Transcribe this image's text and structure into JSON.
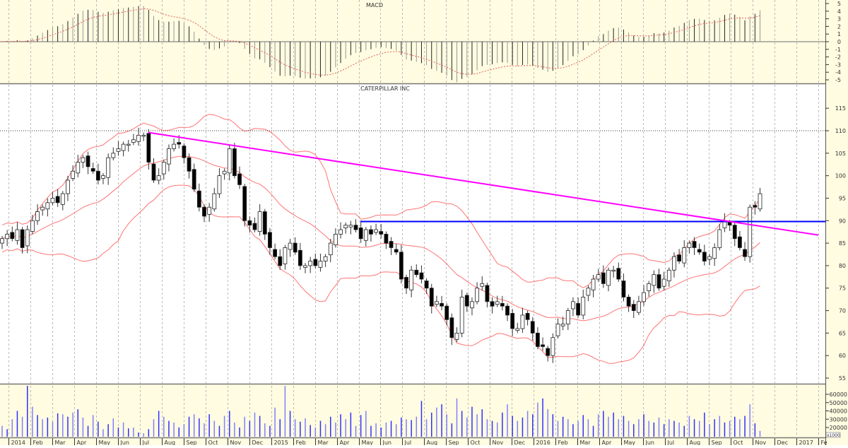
{
  "macd_panel": {
    "title": "MACD",
    "ticks": [
      5,
      4,
      3,
      2,
      1,
      0,
      -1,
      -2,
      -3,
      -4,
      -5
    ]
  },
  "price_panel": {
    "title": "CATERPILLAR INC",
    "ticks": [
      55,
      60,
      65,
      70,
      75,
      80,
      85,
      90,
      95,
      100,
      105,
      110,
      115
    ]
  },
  "volume_panel": {
    "ticks": [
      "20000",
      "30000",
      "40000",
      "50000",
      "60000"
    ],
    "unit_label": "x1000"
  },
  "x_axis": {
    "months": [
      "2014",
      "Feb",
      "Mar",
      "Apr",
      "May",
      "Jun",
      "Jul",
      "Aug",
      "Sep",
      "Oct",
      "Nov",
      "Dec",
      "2015",
      "Feb",
      "Mar",
      "Apr",
      "May",
      "Jun",
      "Jul",
      "Aug",
      "Sep",
      "Oct",
      "Nov",
      "Dec",
      "2016",
      "Feb",
      "Mar",
      "Apr",
      "May",
      "Jun",
      "Jul",
      "Aug",
      "Sep",
      "Oct",
      "Nov",
      "Dec",
      "2017",
      "Fe"
    ]
  },
  "colors": {
    "panel_bg": "#fffce1",
    "bollinger": "#ff5a5a",
    "trendline": "#ff00ff",
    "resistance": "#0000ff",
    "volume": "#3030ff",
    "macd_signal": "#e06060"
  },
  "chart_data": {
    "type": "candlestick",
    "interval": "weekly",
    "closes": [
      86,
      87,
      86,
      88,
      84,
      88,
      90,
      92,
      93,
      94,
      95,
      94,
      96,
      99,
      101,
      103,
      104,
      102,
      101,
      99,
      100,
      104,
      105,
      106,
      107,
      107,
      108,
      109,
      109,
      103,
      99,
      100,
      103,
      106,
      107,
      107,
      104,
      101,
      97,
      93,
      91,
      93,
      96,
      100,
      101,
      106,
      100,
      98,
      90,
      89,
      88,
      92,
      87,
      84,
      82,
      80,
      84,
      85,
      83,
      80,
      80,
      81,
      80,
      81,
      82,
      85,
      87,
      88,
      89,
      89,
      88,
      86,
      88,
      87,
      88,
      87,
      85,
      84,
      83,
      77,
      75,
      79,
      78,
      77,
      75,
      71,
      72,
      71,
      68,
      64,
      65,
      73,
      71,
      72,
      75,
      76,
      72,
      71,
      72,
      71,
      69,
      66,
      66,
      69,
      68,
      65,
      62,
      62,
      60,
      64,
      67,
      67,
      70,
      72,
      69,
      73,
      75,
      77,
      78,
      76,
      79,
      79,
      77,
      73,
      71,
      70,
      72,
      74,
      76,
      78,
      75,
      77,
      79,
      82,
      81,
      84,
      85,
      84,
      83,
      81,
      82,
      84,
      88,
      90,
      89,
      86,
      84,
      82,
      93,
      93,
      96
    ],
    "volume_thousands": [
      22,
      18,
      30,
      40,
      33,
      72,
      45,
      35,
      30,
      32,
      27,
      37,
      36,
      33,
      38,
      42,
      32,
      22,
      35,
      27,
      18,
      24,
      31,
      20,
      26,
      19,
      20,
      14,
      13,
      18,
      30,
      40,
      33,
      28,
      26,
      20,
      24,
      33,
      36,
      31,
      25,
      36,
      28,
      22,
      34,
      40,
      26,
      20,
      33,
      28,
      38,
      34,
      25,
      22,
      44,
      30,
      70,
      40,
      30,
      27,
      31,
      23,
      20,
      28,
      24,
      33,
      26,
      36,
      30,
      38,
      22,
      35,
      40,
      22,
      25,
      20,
      26,
      28,
      24,
      32,
      30,
      29,
      33,
      52,
      30,
      38,
      44,
      48,
      36,
      25,
      55,
      40,
      32,
      45,
      36,
      42,
      30,
      28,
      26,
      38,
      48,
      34,
      28,
      32,
      40,
      36,
      50,
      55,
      42,
      36,
      28,
      33,
      30,
      24,
      28,
      35,
      30,
      22,
      36,
      40,
      33,
      38,
      30,
      34,
      28,
      24,
      30,
      36,
      28,
      26,
      32,
      24,
      30,
      28,
      26,
      22,
      34,
      30,
      28,
      38,
      24,
      30,
      34,
      26,
      28,
      33,
      30,
      34,
      48,
      25,
      16
    ],
    "bollinger": {
      "period": 20,
      "stddev": 2
    },
    "macd": {
      "fast": 12,
      "slow": 26,
      "signal": 9
    },
    "horizontal_dotted_level": 110,
    "resistance_level": 89.8,
    "trendline": {
      "from_price": 109.6,
      "to_price": 86.8
    },
    "price_range": [
      53,
      121
    ],
    "macd_range": [
      -5.5,
      5.5
    ]
  }
}
